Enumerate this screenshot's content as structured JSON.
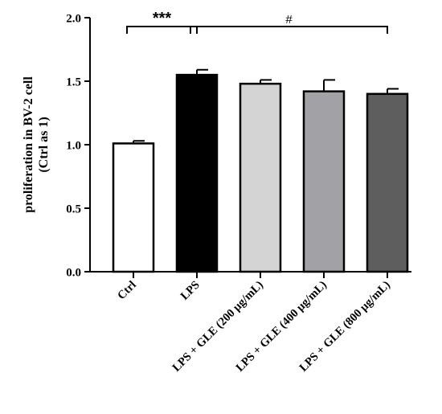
{
  "chart_data": {
    "type": "bar",
    "ylabel_lines": [
      "proliferation in BV-2 cell",
      "(Ctrl as 1)"
    ],
    "ylim": [
      0,
      2.0
    ],
    "yticks": [
      0.0,
      0.5,
      1.0,
      1.5,
      2.0
    ],
    "ytick_labels": [
      "0.0",
      "0.5",
      "1.0",
      "1.5",
      "2.0"
    ],
    "categories": [
      "Ctrl",
      "LPS",
      "LPS + GLE (200 μg/mL)",
      "LPS + GLE (400 μg/mL)",
      "LPS + GLE (800  μg/mL)"
    ],
    "values": [
      1.01,
      1.55,
      1.48,
      1.42,
      1.4
    ],
    "errors": [
      0.02,
      0.04,
      0.03,
      0.09,
      0.04
    ],
    "bar_colors": [
      "#ffffff",
      "#000000",
      "#d4d4d4",
      "#a2a2a6",
      "#5e5e5e"
    ],
    "annotations": [
      {
        "text": "***",
        "from_category": 0,
        "to_category": 1,
        "level": 1.93
      },
      {
        "text": "#",
        "from_category": 1,
        "to_category": 4,
        "level": 1.93
      }
    ]
  }
}
